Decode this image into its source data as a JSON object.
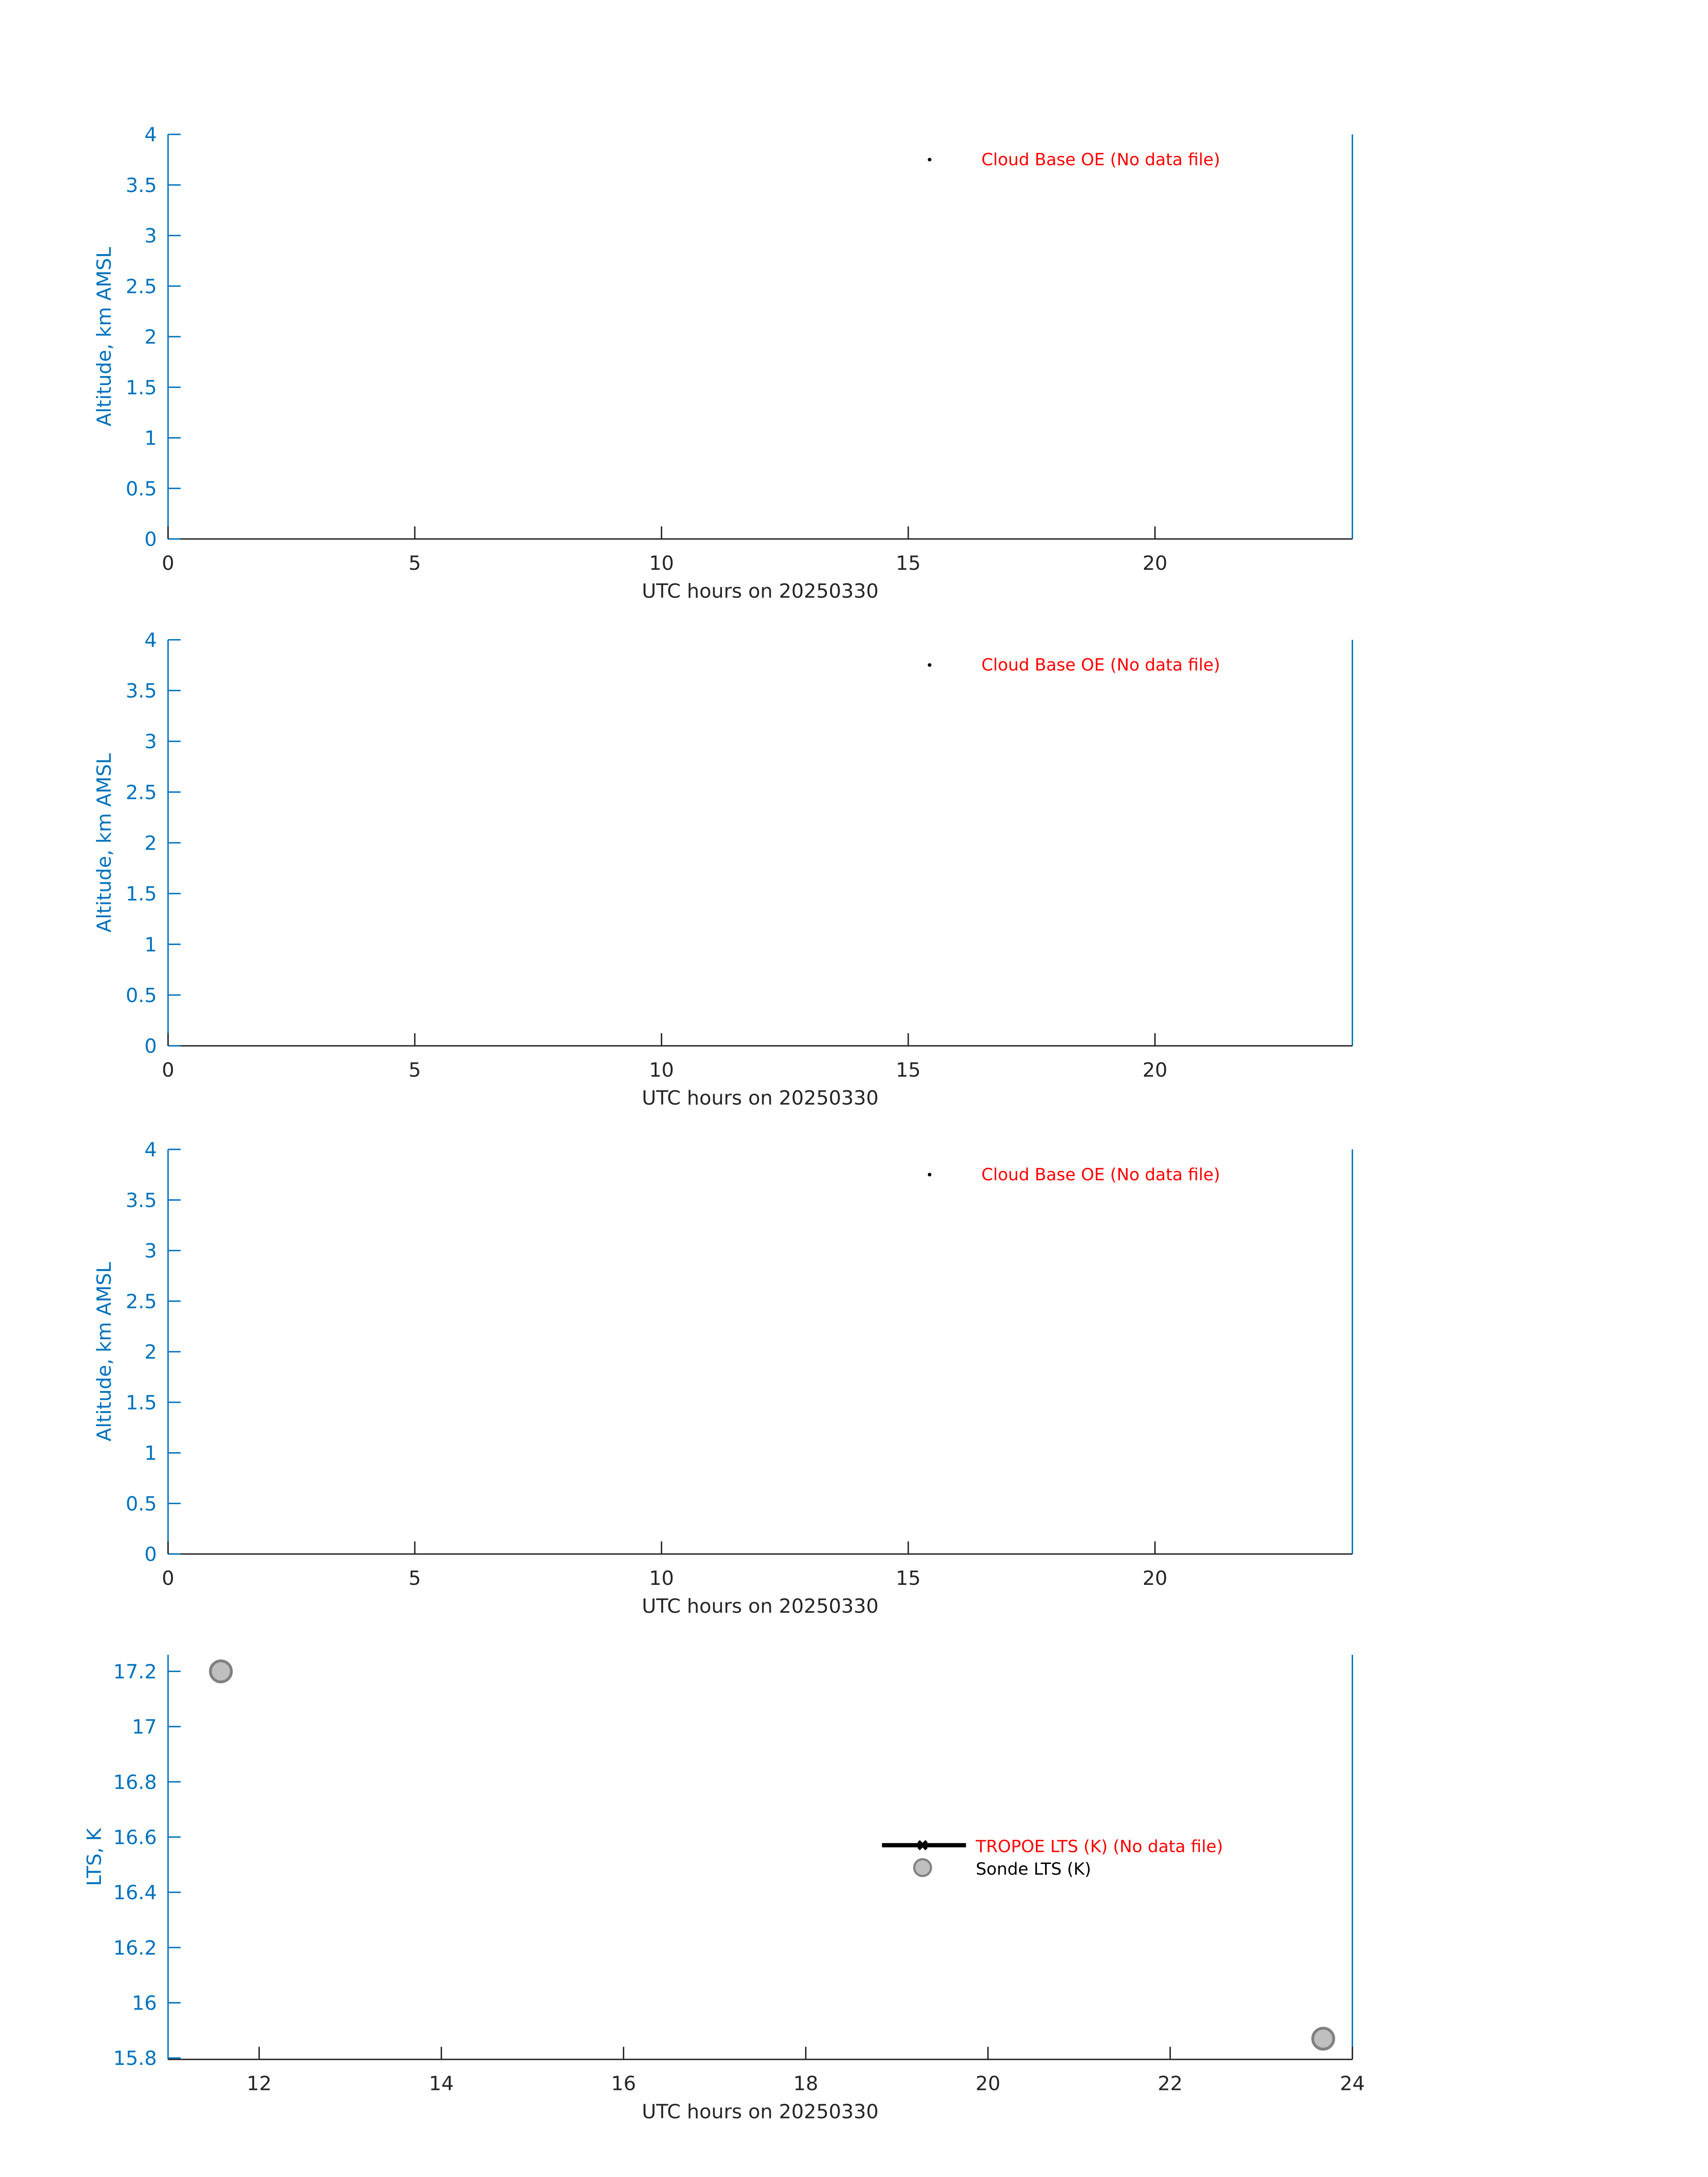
{
  "chart_data": [
    {
      "type": "scatter",
      "xlabel": "UTC hours on 20250330",
      "ylabel": "Altitude, km AMSL",
      "xlim": [
        0,
        24
      ],
      "ylim": [
        0,
        4
      ],
      "xticks": [
        "0",
        "5",
        "10",
        "15",
        "20"
      ],
      "yticks": [
        "0",
        "0.5",
        "1",
        "1.5",
        "2",
        "2.5",
        "3",
        "3.5",
        "4"
      ],
      "grid": false,
      "legend": {
        "placement": "top-right",
        "entries": [
          {
            "label": "Cloud Base OE (No data file)",
            "color": "#ff0000",
            "marker": "dot"
          }
        ]
      },
      "series": []
    },
    {
      "type": "scatter",
      "xlabel": "UTC hours on 20250330",
      "ylabel": "Altitude, km AMSL",
      "xlim": [
        0,
        24
      ],
      "ylim": [
        0,
        4
      ],
      "xticks": [
        "0",
        "5",
        "10",
        "15",
        "20"
      ],
      "yticks": [
        "0",
        "0.5",
        "1",
        "1.5",
        "2",
        "2.5",
        "3",
        "3.5",
        "4"
      ],
      "grid": false,
      "legend": {
        "placement": "top-right",
        "entries": [
          {
            "label": "Cloud Base OE (No data file)",
            "color": "#ff0000",
            "marker": "dot"
          }
        ]
      },
      "series": []
    },
    {
      "type": "scatter",
      "xlabel": "UTC hours on 20250330",
      "ylabel": "Altitude, km AMSL",
      "xlim": [
        0,
        24
      ],
      "ylim": [
        0,
        4
      ],
      "xticks": [
        "0",
        "5",
        "10",
        "15",
        "20"
      ],
      "yticks": [
        "0",
        "0.5",
        "1",
        "1.5",
        "2",
        "2.5",
        "3",
        "3.5",
        "4"
      ],
      "grid": false,
      "legend": {
        "placement": "top-right",
        "entries": [
          {
            "label": "Cloud Base OE (No data file)",
            "color": "#ff0000",
            "marker": "dot"
          }
        ]
      },
      "series": []
    },
    {
      "type": "scatter",
      "xlabel": "UTC hours on 20250330",
      "ylabel": "LTS, K",
      "xlim": [
        11,
        24
      ],
      "ylim": [
        15.795,
        17.26
      ],
      "xticks": [
        "12",
        "14",
        "16",
        "18",
        "20",
        "22",
        "24"
      ],
      "yticks": [
        "15.8",
        "16",
        "16.2",
        "16.4",
        "16.6",
        "16.8",
        "17",
        "17.2"
      ],
      "grid": false,
      "legend": {
        "placement": "center-right",
        "entries": [
          {
            "label": "TROPOE LTS (K) (No data file)",
            "color": "#ff0000",
            "marker": "line-x"
          },
          {
            "label": "Sonde LTS (K)",
            "color": "#000000",
            "marker": "circle"
          }
        ]
      },
      "series": [
        {
          "name": "Sonde LTS (K)",
          "x": [
            11.58,
            23.68
          ],
          "y": [
            17.2,
            15.87
          ],
          "fill": "#bfbfbf",
          "edge": "#808080"
        }
      ]
    }
  ],
  "colors": {
    "axis": "#0072bd",
    "xaxis": "#262626",
    "legend_red": "#ff0000"
  }
}
